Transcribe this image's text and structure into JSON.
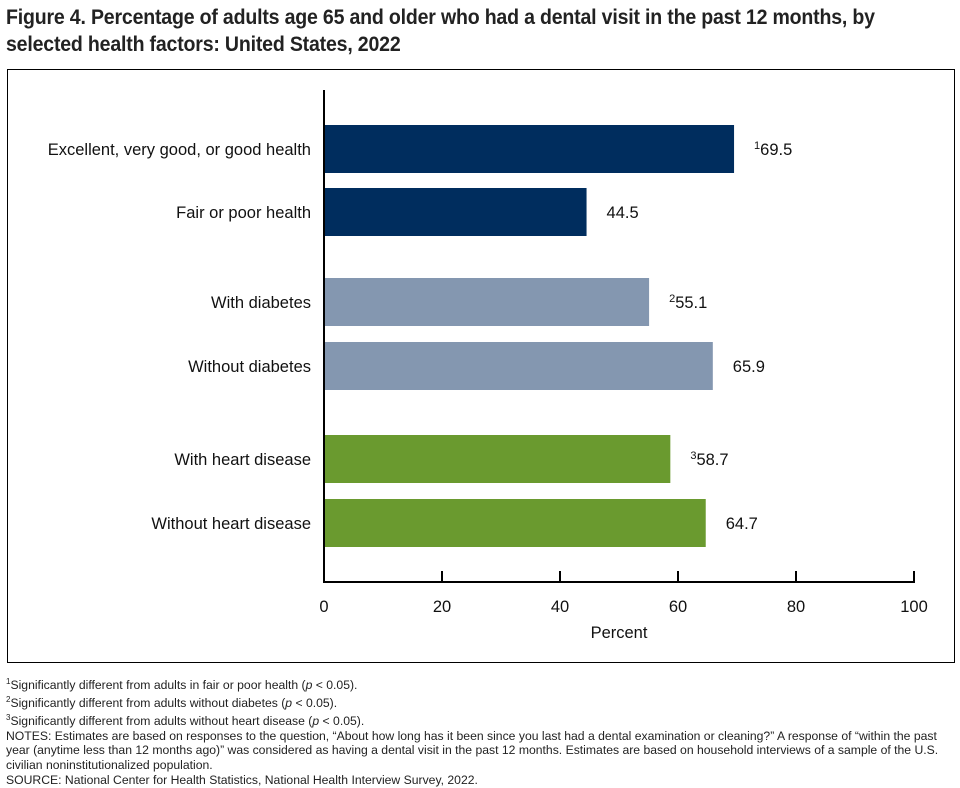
{
  "chart_data": {
    "type": "bar",
    "orientation": "horizontal",
    "title": "Figure 4. Percentage of adults age 65 and older who had a dental visit in the past 12 months, by selected health factors: United States, 2022",
    "categories": [
      "Excellent, very good, or good health",
      "Fair or poor health",
      "With diabetes",
      "Without diabetes",
      "With heart disease",
      "Without heart disease"
    ],
    "values": [
      69.5,
      44.5,
      55.1,
      65.9,
      58.7,
      64.7
    ],
    "value_labels": [
      "69.5",
      "44.5",
      "55.1",
      "65.9",
      "58.7",
      "64.7"
    ],
    "superscripts": [
      "1",
      "",
      "2",
      "",
      "3",
      ""
    ],
    "groups": [
      0,
      0,
      1,
      1,
      2,
      2
    ],
    "group_colors": [
      "#002d5e",
      "#8497b0",
      "#6a9a2f"
    ],
    "xlabel": "Percent",
    "xlim": [
      0,
      100
    ],
    "xticks": [
      "0",
      "20",
      "40",
      "60",
      "80",
      "100"
    ],
    "grid": false
  },
  "footnotes": [
    {
      "sup": "1",
      "text": "Significantly different from adults in fair or poor health (",
      "p": "p",
      "tail": " < 0.05)."
    },
    {
      "sup": "2",
      "text": "Significantly different from adults without diabetes (",
      "p": "p",
      "tail": " < 0.05)."
    },
    {
      "sup": "3",
      "text": "Significantly different from adults without heart disease (",
      "p": "p",
      "tail": " < 0.05)."
    }
  ],
  "notes": "NOTES: Estimates are based on responses to the question, “About how long has it been since you last had a dental examination or cleaning?” A response of “within the past year (anytime less than 12 months ago)” was considered as having a dental visit in the past 12 months. Estimates are based on household interviews of a sample of the U.S. civilian noninstitutionalized population.",
  "source": "SOURCE: National Center for Health Statistics, National Health Interview Survey, 2022."
}
